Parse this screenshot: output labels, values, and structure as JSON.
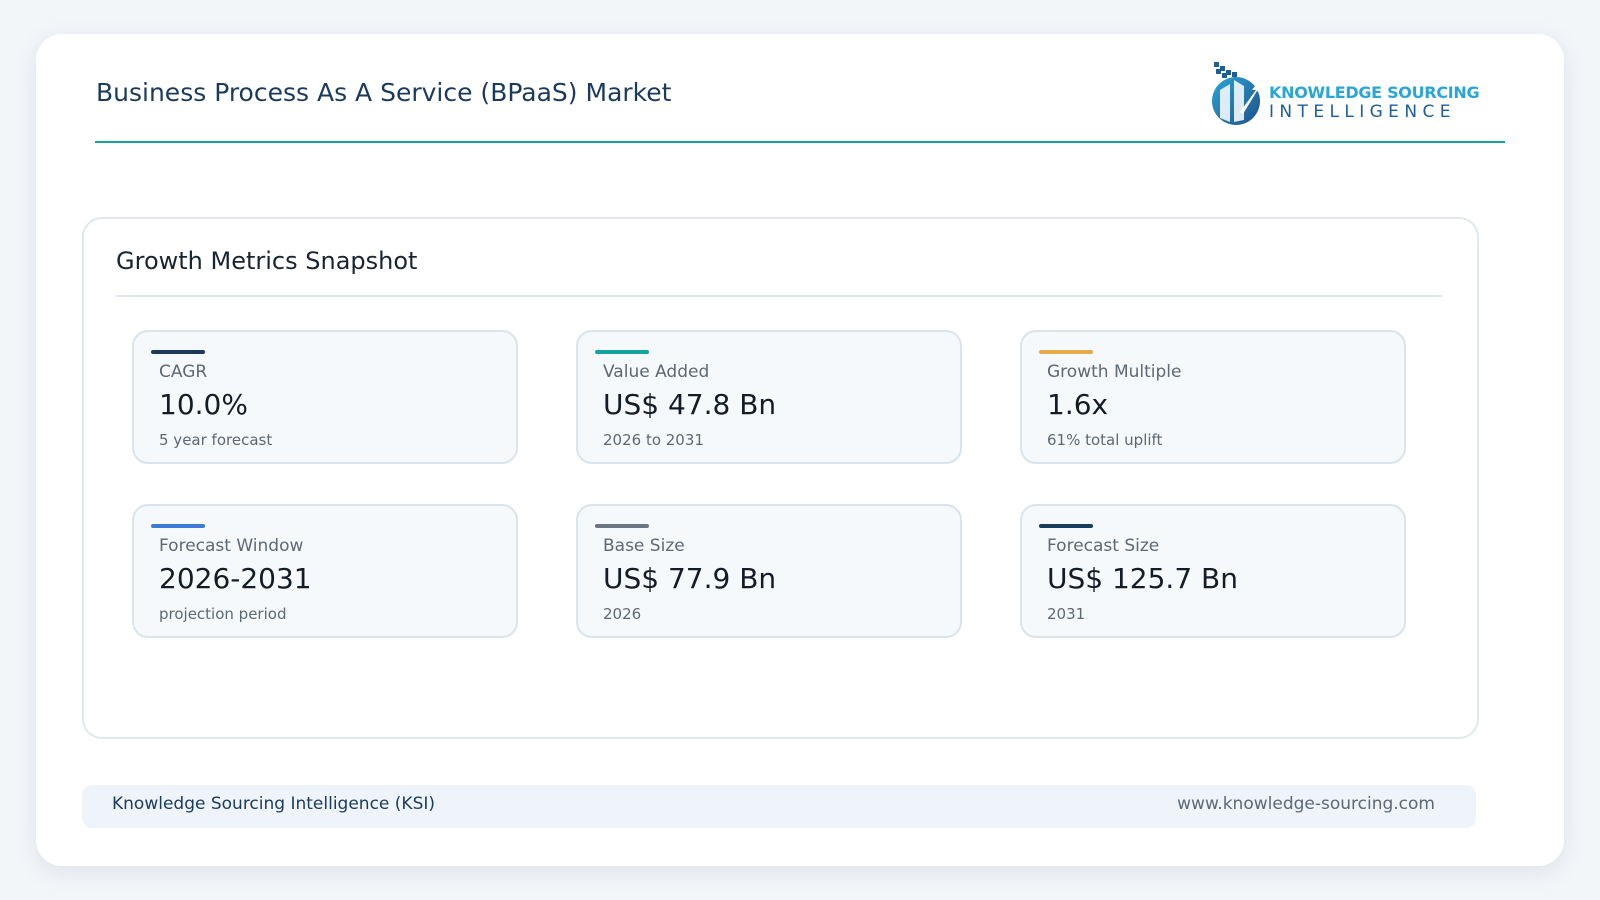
{
  "header": {
    "title": "Business Process As A Service (BPaaS) Market",
    "logo": {
      "line1": "KNOWLEDGE SOURCING",
      "line2": "INTELLIGENCE"
    }
  },
  "panel": {
    "title": "Growth Metrics Snapshot",
    "cards": [
      {
        "label": "CAGR",
        "value": "10.0%",
        "note": "5 year forecast",
        "color": "#1b3a5c"
      },
      {
        "label": "Value Added",
        "value": "US$ 47.8 Bn",
        "note": "2026 to 2031",
        "color": "#14a3a1"
      },
      {
        "label": "Growth Multiple",
        "value": "1.6x",
        "note": "61% total uplift",
        "color": "#e8a94a"
      },
      {
        "label": "Forecast Window",
        "value": "2026-2031",
        "note": "projection period",
        "color": "#3a7bd8"
      },
      {
        "label": "Base Size",
        "value": "US$ 77.9 Bn",
        "note": "2026",
        "color": "#6b7684"
      },
      {
        "label": "Forecast Size",
        "value": "US$ 125.7 Bn",
        "note": "2031",
        "color": "#173c5e"
      }
    ]
  },
  "footer": {
    "left": "Knowledge Sourcing Intelligence (KSI)",
    "right": "www.knowledge-sourcing.com"
  }
}
